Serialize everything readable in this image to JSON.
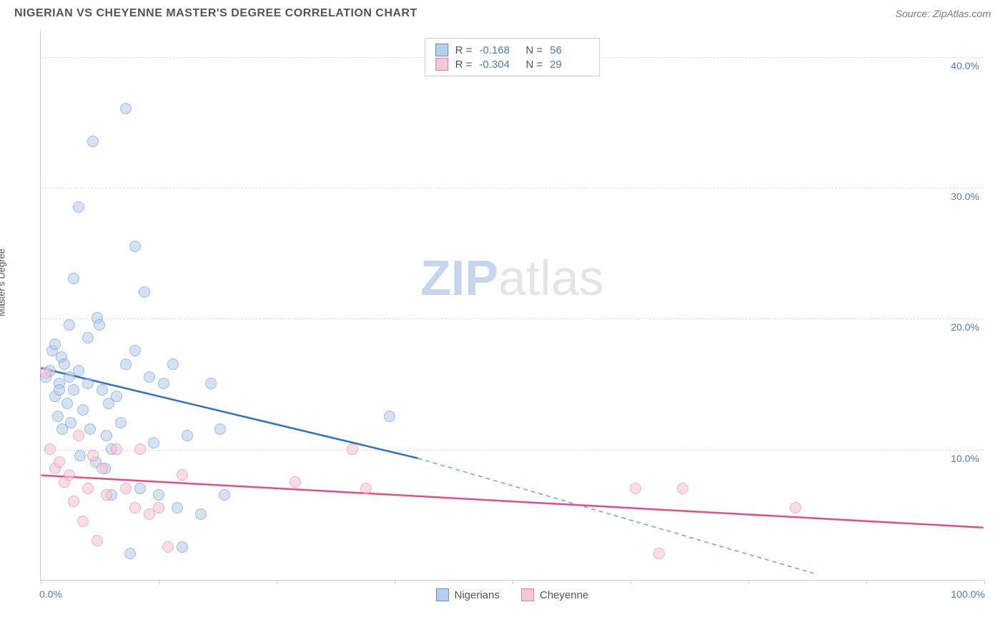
{
  "title": "NIGERIAN VS CHEYENNE MASTER'S DEGREE CORRELATION CHART",
  "source": "Source: ZipAtlas.com",
  "watermark": {
    "part1": "ZIP",
    "part2": "atlas"
  },
  "ylabel": "Master's Degree",
  "chart": {
    "type": "scatter",
    "xlim": [
      0,
      100
    ],
    "ylim": [
      0,
      42
    ],
    "x_axis_labels": {
      "min": "0.0%",
      "max": "100.0%"
    },
    "y_ticks": [
      10,
      20,
      30,
      40
    ],
    "y_tick_labels": [
      "10.0%",
      "20.0%",
      "30.0%",
      "40.0%"
    ],
    "x_ticks": [
      0,
      12.5,
      25,
      37.5,
      50,
      62.5,
      75,
      87.5,
      100
    ],
    "grid_color": "#dddddd",
    "background_color": "#ffffff",
    "axis_color": "#cccccc",
    "marker_radius": 8,
    "marker_border_width": 1.5
  },
  "series": [
    {
      "name": "Nigerians",
      "fill_color": "#b8cfec",
      "stroke_color": "#5a8fd6",
      "fill_opacity": 0.6,
      "R": "-0.168",
      "N": "56",
      "trend": {
        "x1": 0,
        "y1": 16.2,
        "x2": 40,
        "y2": 9.3,
        "dash_x2": 82,
        "dash_y2": 0.5,
        "solid_color": "#2e6fc9",
        "dash_color": "#6fa0db",
        "width": 2.5
      },
      "points": [
        [
          0.5,
          15.5
        ],
        [
          1.0,
          16.0
        ],
        [
          1.2,
          17.5
        ],
        [
          1.5,
          18.0
        ],
        [
          1.5,
          14.0
        ],
        [
          2.0,
          15.0
        ],
        [
          2.0,
          14.5
        ],
        [
          2.2,
          17.0
        ],
        [
          2.5,
          16.5
        ],
        [
          2.8,
          13.5
        ],
        [
          3.0,
          15.5
        ],
        [
          3.0,
          19.5
        ],
        [
          3.5,
          23.0
        ],
        [
          3.5,
          14.5
        ],
        [
          4.0,
          16.0
        ],
        [
          4.0,
          28.5
        ],
        [
          4.5,
          13.0
        ],
        [
          5.0,
          18.5
        ],
        [
          5.0,
          15.0
        ],
        [
          5.5,
          33.5
        ],
        [
          6.0,
          20.0
        ],
        [
          6.2,
          19.5
        ],
        [
          6.5,
          14.5
        ],
        [
          7.0,
          11.0
        ],
        [
          7.5,
          10.0
        ],
        [
          7.5,
          6.5
        ],
        [
          8.0,
          14.0
        ],
        [
          8.5,
          12.0
        ],
        [
          9.0,
          36.0
        ],
        [
          9.0,
          16.5
        ],
        [
          9.5,
          2.0
        ],
        [
          10.0,
          25.5
        ],
        [
          10.0,
          17.5
        ],
        [
          10.5,
          7.0
        ],
        [
          11.0,
          22.0
        ],
        [
          11.5,
          15.5
        ],
        [
          12.0,
          10.5
        ],
        [
          12.5,
          6.5
        ],
        [
          13.0,
          15.0
        ],
        [
          14.0,
          16.5
        ],
        [
          14.5,
          5.5
        ],
        [
          15.0,
          2.5
        ],
        [
          15.5,
          11.0
        ],
        [
          17.0,
          5.0
        ],
        [
          18.0,
          15.0
        ],
        [
          19.0,
          11.5
        ],
        [
          19.5,
          6.5
        ],
        [
          37.0,
          12.5
        ],
        [
          1.8,
          12.5
        ],
        [
          2.3,
          11.5
        ],
        [
          3.2,
          12.0
        ],
        [
          4.2,
          9.5
        ],
        [
          5.2,
          11.5
        ],
        [
          5.8,
          9.0
        ],
        [
          6.8,
          8.5
        ],
        [
          7.2,
          13.5
        ]
      ]
    },
    {
      "name": "Cheyenne",
      "fill_color": "#f5c7d4",
      "stroke_color": "#e67aa0",
      "fill_opacity": 0.6,
      "R": "-0.304",
      "N": "29",
      "trend": {
        "x1": 0,
        "y1": 8.0,
        "x2": 100,
        "y2": 4.0,
        "solid_color": "#e64b89",
        "width": 2.5
      },
      "points": [
        [
          0.5,
          15.8
        ],
        [
          1.0,
          10.0
        ],
        [
          1.5,
          8.5
        ],
        [
          2.0,
          9.0
        ],
        [
          2.5,
          7.5
        ],
        [
          3.0,
          8.0
        ],
        [
          3.5,
          6.0
        ],
        [
          4.0,
          11.0
        ],
        [
          4.5,
          4.5
        ],
        [
          5.0,
          7.0
        ],
        [
          5.5,
          9.5
        ],
        [
          6.0,
          3.0
        ],
        [
          6.5,
          8.5
        ],
        [
          7.0,
          6.5
        ],
        [
          8.0,
          10.0
        ],
        [
          9.0,
          7.0
        ],
        [
          10.0,
          5.5
        ],
        [
          10.5,
          10.0
        ],
        [
          11.5,
          5.0
        ],
        [
          12.5,
          5.5
        ],
        [
          13.5,
          2.5
        ],
        [
          15.0,
          8.0
        ],
        [
          27.0,
          7.5
        ],
        [
          33.0,
          10.0
        ],
        [
          34.5,
          7.0
        ],
        [
          63.0,
          7.0
        ],
        [
          68.0,
          7.0
        ],
        [
          65.5,
          2.0
        ],
        [
          80.0,
          5.5
        ]
      ]
    }
  ],
  "stats_box": {
    "rows": [
      {
        "swatch_fill": "#b8cfec",
        "swatch_border": "#5a8fd6",
        "r_label": "R =",
        "r_val": "-0.168",
        "n_label": "N =",
        "n_val": "56"
      },
      {
        "swatch_fill": "#f5c7d4",
        "swatch_border": "#e67aa0",
        "r_label": "R =",
        "r_val": "-0.304",
        "n_label": "N =",
        "n_val": "29"
      }
    ]
  },
  "legend": [
    {
      "swatch_fill": "#b8cfec",
      "swatch_border": "#5a8fd6",
      "label": "Nigerians"
    },
    {
      "swatch_fill": "#f5c7d4",
      "swatch_border": "#e67aa0",
      "label": "Cheyenne"
    }
  ]
}
